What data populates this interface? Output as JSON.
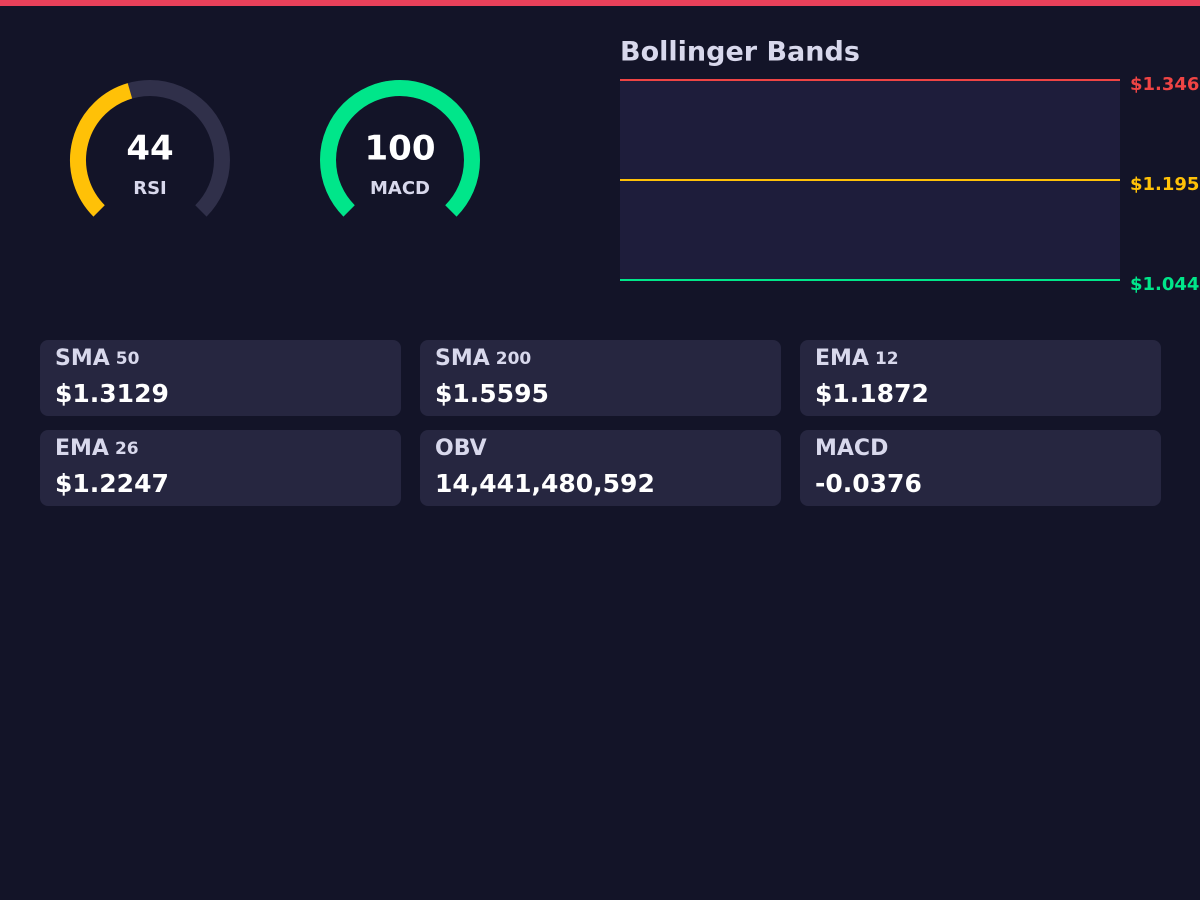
{
  "gauges": [
    {
      "label": "RSI",
      "value": 44,
      "scale": [
        0,
        100
      ],
      "color": "#ffc107"
    },
    {
      "label": "MACD",
      "value": 100,
      "scale": [
        0,
        100
      ],
      "color": "#00e68a"
    }
  ],
  "bollinger": {
    "title": "Bollinger Bands",
    "ylim": [
      1.044,
      1.346
    ],
    "bands": [
      {
        "value": 1.346,
        "label": "$1.346",
        "color": "#ef4444"
      },
      {
        "value": 1.195,
        "label": "$1.195",
        "color": "#ffc107"
      },
      {
        "value": 1.044,
        "label": "$1.044",
        "color": "#00e68a"
      }
    ]
  },
  "indicators": [
    {
      "name": "SMA",
      "period": "50",
      "value": "$1.3129"
    },
    {
      "name": "SMA",
      "period": "200",
      "value": "$1.5595"
    },
    {
      "name": "EMA",
      "period": "12",
      "value": "$1.1872"
    },
    {
      "name": "EMA",
      "period": "26",
      "value": "$1.2247"
    },
    {
      "name": "OBV",
      "value": "14,441,480,592"
    },
    {
      "name": "MACD",
      "value": "-0.0376"
    }
  ]
}
